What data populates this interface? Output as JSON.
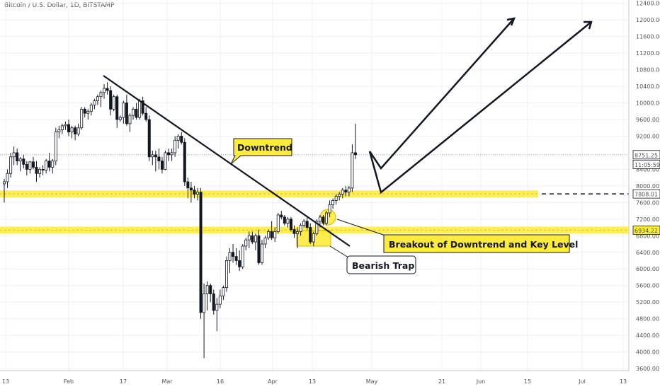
{
  "chart_data": {
    "type": "candlestick",
    "title": "Bitcoin / U.S. Dollar, 1D, BITSTAMP",
    "y_axis": {
      "ticks": [
        3600,
        4000,
        4400,
        4800,
        5200,
        5600,
        6000,
        6400,
        6800,
        7200,
        7600,
        8000,
        8400,
        9200,
        9600,
        10000,
        10400,
        10800,
        11200,
        11600,
        12000,
        12400
      ],
      "range": [
        3550,
        12480
      ]
    },
    "x_axis": {
      "ticks": [
        "13",
        "Feb",
        "17",
        "Mar",
        "16",
        "Apr",
        "13",
        "May",
        "21",
        "Jun",
        "15",
        "Jul",
        "13"
      ]
    },
    "price_labels": [
      {
        "text": "8751.25",
        "value": 8751.25,
        "color": "#ffffff",
        "border": "#131722",
        "text_color": "#131722"
      },
      {
        "text": "11:05:59",
        "value": 8520,
        "color": "#ffffff",
        "border": "#131722",
        "text_color": "#131722"
      },
      {
        "text": "7808.01",
        "value": 7808.01,
        "color": "#ffffff",
        "border": "#131722",
        "text_color": "#131722"
      },
      {
        "text": "6934.22",
        "value": 6934.22,
        "color": "#ffeb3b",
        "border": "#131722",
        "text_color": "#131722"
      }
    ],
    "key_levels": [
      {
        "value": 7808,
        "color": "#ffeb3b"
      },
      {
        "value": 6934,
        "color": "#ffeb3b"
      }
    ],
    "annotations": [
      {
        "text": "Downtrend"
      },
      {
        "text": "Breakout of Downtrend and Key Level"
      },
      {
        "text": "Bearish Trap"
      }
    ],
    "colors": {
      "up": "#ffffff",
      "down": "#131722",
      "wick": "#131722",
      "grid": "#eef0f3",
      "highlight": "#ffeb3b"
    },
    "candles": [
      [
        8050,
        8170,
        7600,
        8100
      ],
      [
        8100,
        8400,
        7950,
        8300
      ],
      [
        8300,
        8800,
        8200,
        8700
      ],
      [
        8700,
        8950,
        8500,
        8800
      ],
      [
        8800,
        8900,
        8500,
        8600
      ],
      [
        8600,
        8700,
        8350,
        8650
      ],
      [
        8650,
        8750,
        8420,
        8520
      ],
      [
        8520,
        8600,
        8250,
        8400
      ],
      [
        8400,
        8600,
        8300,
        8580
      ],
      [
        8580,
        8700,
        8400,
        8450
      ],
      [
        8450,
        8600,
        8100,
        8300
      ],
      [
        8300,
        8450,
        8200,
        8400
      ],
      [
        8400,
        8500,
        8260,
        8380
      ],
      [
        8380,
        8650,
        8300,
        8600
      ],
      [
        8600,
        8800,
        8350,
        8450
      ],
      [
        8450,
        8650,
        8300,
        8600
      ],
      [
        8600,
        9400,
        8500,
        9300
      ],
      [
        9300,
        9450,
        9150,
        9350
      ],
      [
        9350,
        9500,
        9250,
        9450
      ],
      [
        9450,
        9550,
        9350,
        9480
      ],
      [
        9480,
        9600,
        9200,
        9300
      ],
      [
        9300,
        9450,
        9150,
        9400
      ],
      [
        9400,
        9450,
        9100,
        9250
      ],
      [
        9250,
        9500,
        9200,
        9400
      ],
      [
        9400,
        9900,
        9350,
        9850
      ],
      [
        9850,
        9900,
        9650,
        9750
      ],
      [
        9750,
        9850,
        9600,
        9800
      ],
      [
        9800,
        10000,
        9700,
        9950
      ],
      [
        9950,
        10100,
        9850,
        10050
      ],
      [
        10050,
        10200,
        9950,
        10150
      ],
      [
        10150,
        10300,
        9900,
        10250
      ],
      [
        10250,
        10450,
        10100,
        10350
      ],
      [
        10350,
        10500,
        10200,
        10300
      ],
      [
        10300,
        10400,
        9700,
        9850
      ],
      [
        9850,
        10200,
        9800,
        10150
      ],
      [
        10150,
        10200,
        9400,
        9600
      ],
      [
        9600,
        9700,
        9550,
        9650
      ],
      [
        9650,
        10050,
        9500,
        10000
      ],
      [
        10000,
        10200,
        9450,
        9500
      ],
      [
        9500,
        9750,
        9300,
        9700
      ],
      [
        9700,
        9900,
        9600,
        9850
      ],
      [
        9850,
        10000,
        9600,
        9650
      ],
      [
        9650,
        10100,
        9600,
        10050
      ],
      [
        10050,
        10150,
        9700,
        9750
      ],
      [
        9750,
        9900,
        9550,
        9600
      ],
      [
        9600,
        9700,
        8600,
        8700
      ],
      [
        8700,
        8850,
        8500,
        8750
      ],
      [
        8750,
        8850,
        8350,
        8700
      ],
      [
        8700,
        8900,
        8400,
        8600
      ],
      [
        8600,
        8700,
        8300,
        8400
      ],
      [
        8400,
        8850,
        8380,
        8800
      ],
      [
        8800,
        8900,
        8600,
        8750
      ],
      [
        8750,
        8900,
        8600,
        8800
      ],
      [
        8800,
        9200,
        8700,
        9100
      ],
      [
        9100,
        9250,
        8900,
        9200
      ],
      [
        9200,
        9300,
        9000,
        9050
      ],
      [
        9050,
        9150,
        8000,
        8100
      ],
      [
        8100,
        8200,
        7700,
        7950
      ],
      [
        7950,
        8100,
        7600,
        7900
      ],
      [
        7900,
        8000,
        7700,
        7800
      ],
      [
        7800,
        7950,
        7650,
        7850
      ],
      [
        7850,
        7950,
        4800,
        4950
      ],
      [
        4950,
        5650,
        3850,
        5400
      ],
      [
        5400,
        5700,
        5000,
        5600
      ],
      [
        5600,
        5650,
        5200,
        5400
      ],
      [
        5400,
        5500,
        4900,
        5000
      ],
      [
        5000,
        5300,
        4500,
        5150
      ],
      [
        5150,
        5500,
        5050,
        5350
      ],
      [
        5350,
        5600,
        5250,
        5550
      ],
      [
        5550,
        6300,
        5450,
        6200
      ],
      [
        6200,
        6500,
        5900,
        6400
      ],
      [
        6400,
        6600,
        6150,
        6300
      ],
      [
        6300,
        6500,
        6100,
        6200
      ],
      [
        6200,
        6450,
        5950,
        6050
      ],
      [
        6050,
        6600,
        6000,
        6550
      ],
      [
        6550,
        6750,
        6450,
        6700
      ],
      [
        6700,
        6900,
        6500,
        6800
      ],
      [
        6800,
        6900,
        6600,
        6650
      ],
      [
        6650,
        6850,
        6450,
        6800
      ],
      [
        6800,
        6950,
        6100,
        6150
      ],
      [
        6150,
        6700,
        6100,
        6600
      ],
      [
        6600,
        6800,
        6500,
        6750
      ],
      [
        6750,
        6950,
        6700,
        6900
      ],
      [
        6900,
        7150,
        6700,
        6750
      ],
      [
        6750,
        7000,
        6650,
        6900
      ],
      [
        6900,
        7350,
        6850,
        7300
      ],
      [
        7300,
        7400,
        7200,
        7250
      ],
      [
        7250,
        7300,
        7050,
        7100
      ],
      [
        7100,
        7250,
        7000,
        7200
      ],
      [
        7200,
        7250,
        6900,
        6950
      ],
      [
        6950,
        7050,
        6750,
        6850
      ],
      [
        6850,
        7000,
        6500,
        6900
      ],
      [
        6900,
        7100,
        6800,
        7050
      ],
      [
        7050,
        7200,
        7000,
        7150
      ],
      [
        7150,
        7250,
        6950,
        7000
      ],
      [
        7000,
        7100,
        6600,
        6650
      ],
      [
        6650,
        6900,
        6550,
        6850
      ],
      [
        6850,
        7200,
        6800,
        7150
      ],
      [
        7150,
        7300,
        7000,
        7250
      ],
      [
        7250,
        7300,
        7050,
        7100
      ],
      [
        7100,
        7400,
        7050,
        7350
      ],
      [
        7350,
        7650,
        7250,
        7550
      ],
      [
        7550,
        7700,
        7450,
        7650
      ],
      [
        7650,
        7800,
        7550,
        7750
      ],
      [
        7750,
        7850,
        7650,
        7800
      ],
      [
        7800,
        7950,
        7700,
        7900
      ],
      [
        7900,
        8000,
        7750,
        7850
      ],
      [
        7850,
        8000,
        7750,
        7950
      ],
      [
        7950,
        9000,
        7850,
        8800
      ],
      [
        8800,
        9500,
        8650,
        8751
      ]
    ]
  }
}
